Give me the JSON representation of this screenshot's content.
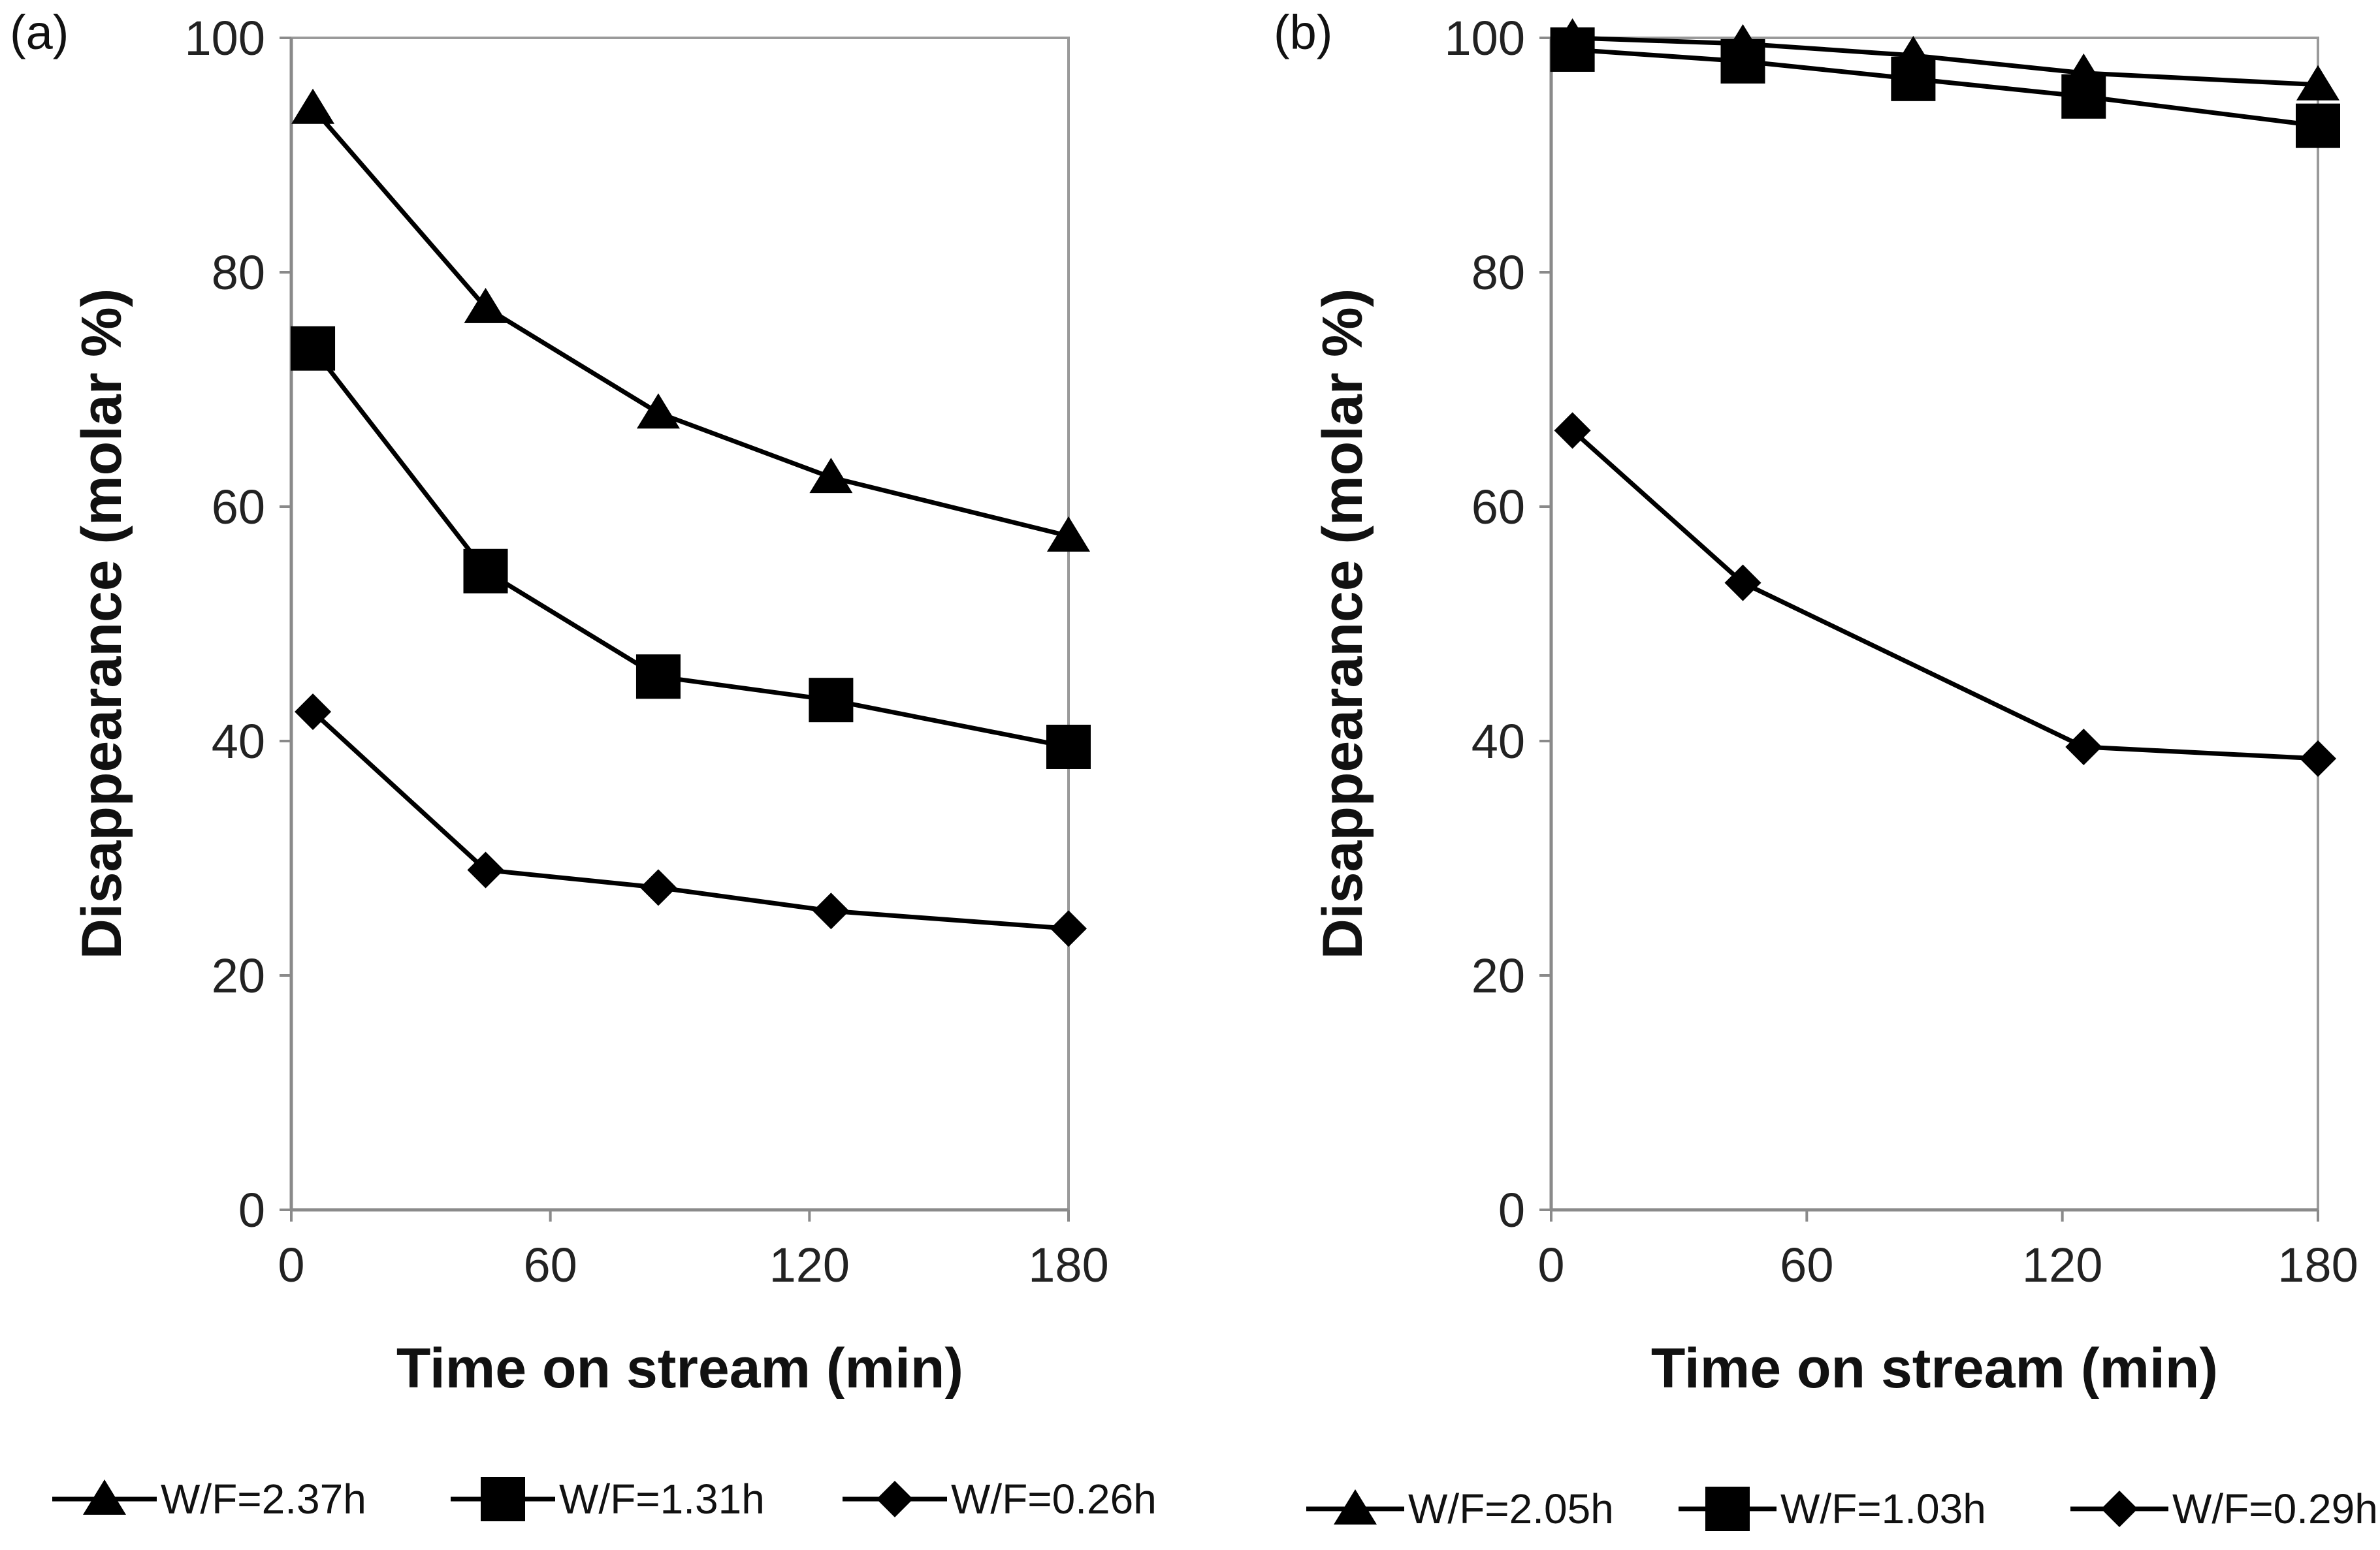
{
  "chart_data": [
    {
      "type": "line",
      "panel_label": "(a)",
      "xlabel": "Time on stream (min)",
      "ylabel": "Disappearance (molar %)",
      "xlim": [
        0,
        180
      ],
      "ylim": [
        0,
        100
      ],
      "xticks": [
        0,
        60,
        120,
        180
      ],
      "yticks": [
        0,
        20,
        40,
        60,
        80,
        100
      ],
      "grid": false,
      "legend_position": "bottom",
      "series": [
        {
          "name": "W/F=2.37h",
          "marker": "triangle",
          "x": [
            5,
            45,
            85,
            125,
            180
          ],
          "y": [
            94,
            77,
            68,
            62.5,
            57.5
          ]
        },
        {
          "name": "W/F=1.31h",
          "marker": "square",
          "x": [
            5,
            45,
            85,
            125,
            180
          ],
          "y": [
            73.5,
            54.5,
            45.5,
            43.5,
            39.5
          ]
        },
        {
          "name": "W/F=0.26h",
          "marker": "diamond",
          "x": [
            5,
            45,
            85,
            125,
            180
          ],
          "y": [
            42.5,
            29,
            27.5,
            25.5,
            24
          ]
        }
      ]
    },
    {
      "type": "line",
      "panel_label": "(b)",
      "xlabel": "Time on stream (min)",
      "ylabel": "Disappearance (molar %)",
      "xlim": [
        0,
        180
      ],
      "ylim": [
        0,
        100
      ],
      "xticks": [
        0,
        60,
        120,
        180
      ],
      "yticks": [
        0,
        20,
        40,
        60,
        80,
        100
      ],
      "grid": false,
      "legend_position": "bottom",
      "series": [
        {
          "name": "W/F=2.05h",
          "marker": "triangle",
          "x": [
            5,
            45,
            85,
            125,
            180
          ],
          "y": [
            100,
            99.5,
            98.5,
            97,
            96
          ]
        },
        {
          "name": "W/F=1.03h",
          "marker": "square",
          "x": [
            5,
            45,
            85,
            125,
            180
          ],
          "y": [
            99,
            98,
            96.5,
            95,
            92.5
          ]
        },
        {
          "name": "W/F=0.29h",
          "marker": "diamond",
          "x": [
            5,
            45,
            125,
            180
          ],
          "y": [
            66.5,
            53.5,
            39.5,
            38.5
          ]
        }
      ]
    }
  ]
}
